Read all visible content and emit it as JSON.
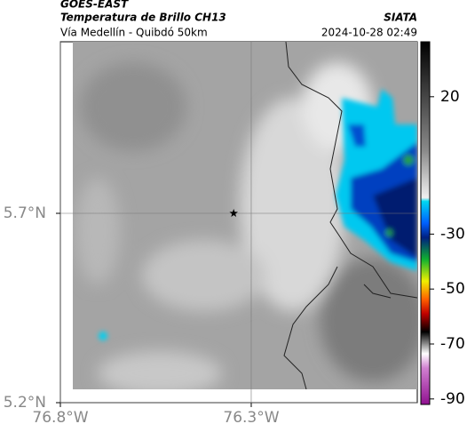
{
  "header": {
    "title": "GOES-EAST",
    "subtitle": "Temperatura de Brillo CH13",
    "source": "SIATA",
    "region": "Vía Medellín - Quibdó 50km",
    "timestamp": "2024-10-28 02:49"
  },
  "map": {
    "xlim": [
      -76.8,
      -75.865
    ],
    "ylim": [
      5.2,
      6.153
    ],
    "xticks": [
      {
        "value": -76.8,
        "label": "76.8°W"
      },
      {
        "value": -76.3,
        "label": "76.3°W"
      }
    ],
    "yticks": [
      {
        "value": 5.2,
        "label": "5.2°N"
      },
      {
        "value": 5.7,
        "label": "5.7°N"
      }
    ],
    "grid": true,
    "marker": {
      "x": -76.346,
      "y": 5.7
    }
  },
  "colorbar": {
    "lim": [
      -92,
      40
    ],
    "ticks": [
      20,
      -30,
      -50,
      -70,
      -90
    ]
  }
}
